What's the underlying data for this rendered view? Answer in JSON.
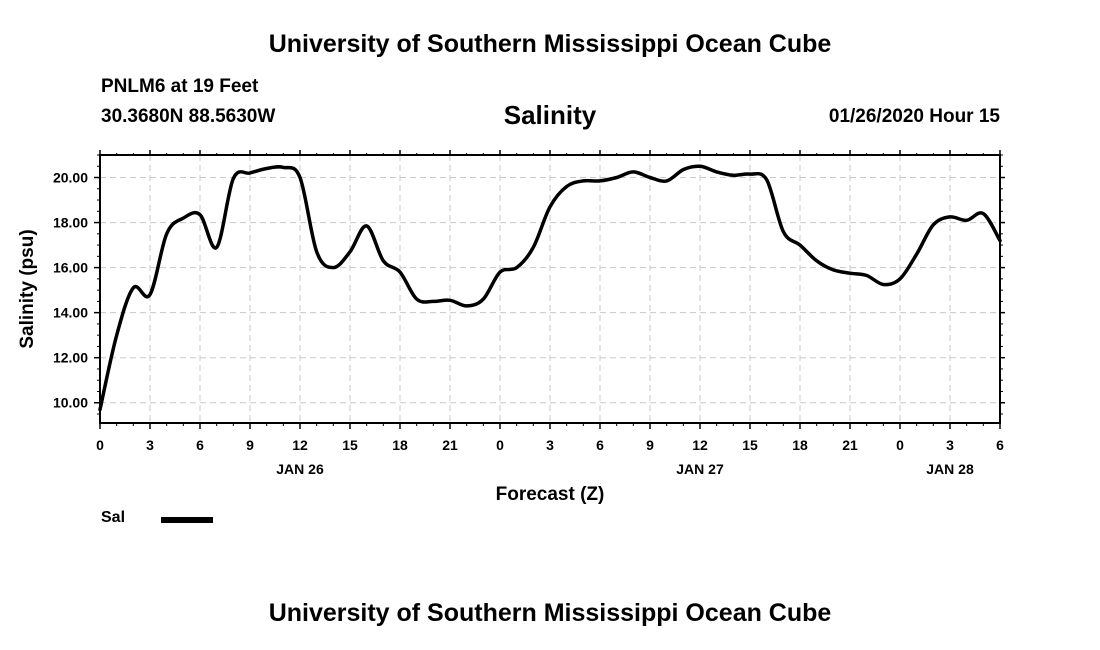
{
  "header": {
    "title": "University of Southern Mississippi Ocean Cube",
    "station": "PNLM6 at 19 Feet",
    "coordinates": "30.3680N 88.5630W",
    "datetime": "01/26/2020 Hour 15"
  },
  "footer": {
    "title": "University of Southern Mississippi Ocean Cube"
  },
  "legend": {
    "label": "Sal"
  },
  "chart_data": {
    "type": "line",
    "title": "Salinity",
    "xlabel": "Forecast (Z)",
    "ylabel": "Salinity (psu)",
    "ylim": [
      9.1,
      21.0
    ],
    "xlim": [
      0,
      54
    ],
    "grid": true,
    "x_tick_labels": [
      "0",
      "3",
      "6",
      "9",
      "12",
      "15",
      "18",
      "21",
      "0",
      "3",
      "6",
      "9",
      "12",
      "15",
      "18",
      "21",
      "0",
      "3",
      "6"
    ],
    "date_labels": [
      {
        "label": "JAN 26",
        "x": 12
      },
      {
        "label": "JAN 27",
        "x": 36
      },
      {
        "label": "JAN 28",
        "x": 51
      }
    ],
    "y_ticks": [
      "10.00",
      "12.00",
      "14.00",
      "16.00",
      "18.00",
      "20.00"
    ],
    "series": [
      {
        "name": "Sal",
        "color": "#000000",
        "x": [
          0,
          1,
          2,
          3,
          4,
          5,
          6,
          7,
          8,
          9,
          10,
          11,
          12,
          13,
          14,
          15,
          16,
          17,
          18,
          19,
          20,
          21,
          22,
          23,
          24,
          25,
          26,
          27,
          28,
          29,
          30,
          31,
          32,
          33,
          34,
          35,
          36,
          37,
          38,
          39,
          40,
          41,
          42,
          43,
          44,
          45,
          46,
          47,
          48,
          49,
          50,
          51,
          52,
          53,
          54
        ],
        "values": [
          9.7,
          13.0,
          15.1,
          14.8,
          17.5,
          18.2,
          18.35,
          16.9,
          19.95,
          20.2,
          20.4,
          20.45,
          20.0,
          16.7,
          16.0,
          16.7,
          17.85,
          16.3,
          15.8,
          14.6,
          14.5,
          14.55,
          14.3,
          14.6,
          15.8,
          16.0,
          16.9,
          18.7,
          19.6,
          19.85,
          19.85,
          20.0,
          20.25,
          20.0,
          19.85,
          20.35,
          20.5,
          20.25,
          20.1,
          20.15,
          19.9,
          17.6,
          17.0,
          16.3,
          15.9,
          15.75,
          15.65,
          15.25,
          15.5,
          16.6,
          17.9,
          18.25,
          18.1,
          18.4,
          17.2
        ]
      }
    ]
  }
}
